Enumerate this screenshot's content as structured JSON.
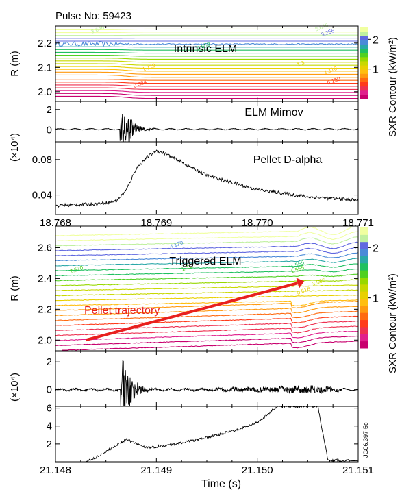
{
  "pulse_label": "Pulse No: 59423",
  "figure_id": "JG06.397-5c",
  "xlabel": "Time (s)",
  "colorbar": {
    "label": "SXR Contour (kW/m²)",
    "ticks": [
      1,
      2
    ],
    "range": [
      0,
      2.4
    ],
    "colors": [
      "#c8006e",
      "#e0208c",
      "#ee3050",
      "#ff3a1a",
      "#ff6a10",
      "#ff9a10",
      "#ffbe10",
      "#e8d000",
      "#c8d800",
      "#98d800",
      "#50d020",
      "#20c060",
      "#2aa8a8",
      "#4a8ad8",
      "#6068e0",
      "#c0f0a0",
      "#f0ffa0"
    ]
  },
  "chart_data": [
    {
      "type": "heatmap",
      "name": "SXR contour (intrinsic ELM)",
      "annotation": "Intrinsic ELM",
      "ylabel": "R (m)",
      "yticks": [
        2.0,
        2.1,
        2.2
      ],
      "ylim": [
        1.96,
        2.27
      ],
      "xlim": [
        18.768,
        18.771
      ],
      "contour_labels": [
        "3.646",
        "3.646",
        "3.256",
        "2.559",
        "1.110",
        "1.110",
        "0.384",
        "0.150",
        "1.3"
      ],
      "event_time": 18.7687
    },
    {
      "type": "line",
      "title": "ELM Mirnov",
      "ylabel": "",
      "yticks": [
        0,
        2
      ],
      "ylim": [
        -1.2,
        2.8
      ],
      "xlim": [
        18.768,
        18.771
      ],
      "burst_time": 18.7687,
      "baseline": 0.05
    },
    {
      "type": "line",
      "title": "Pellet D-alpha",
      "ylabel": "(×10⁴)",
      "yticks": [
        0.04,
        0.08
      ],
      "ylim": [
        0.018,
        0.1
      ],
      "xlim": [
        18.768,
        18.771
      ],
      "xticks": [
        "18.768",
        "18.769",
        "18.770",
        "18.771"
      ],
      "x": [
        18.768,
        18.7684,
        18.7686,
        18.7687,
        18.7688,
        18.7689,
        18.769,
        18.7691,
        18.7695,
        18.77,
        18.7705,
        18.771
      ],
      "y": [
        0.028,
        0.03,
        0.033,
        0.045,
        0.07,
        0.082,
        0.09,
        0.086,
        0.062,
        0.046,
        0.038,
        0.034
      ]
    },
    {
      "type": "heatmap",
      "name": "SXR contour (triggered ELM)",
      "annotation": "Triggered ELM",
      "arrow_label": "Pellet trajectory",
      "ylabel": "R (m)",
      "yticks": [
        2.0,
        2.2,
        2.4,
        2.6
      ],
      "ylim": [
        1.93,
        2.74
      ],
      "xlim": [
        21.148,
        21.151
      ],
      "contour_labels": [
        "4.120",
        "2.570",
        "2.115",
        "1.565",
        "1.565",
        "0.618",
        "3.596"
      ],
      "pellet_trajectory": {
        "x": [
          21.1483,
          21.1504
        ],
        "y": [
          2.0,
          2.37
        ]
      }
    },
    {
      "type": "line",
      "title": "",
      "ylabel": "",
      "yticks": [
        0,
        2
      ],
      "ylim": [
        -1.2,
        2.8
      ],
      "xlim": [
        21.148,
        21.151
      ],
      "burst_time": 21.1487,
      "baseline": 0.0
    },
    {
      "type": "line",
      "title": "",
      "ylabel": "(×10⁴)",
      "yticks": [
        2,
        4,
        6
      ],
      "ylim": [
        0,
        6.2
      ],
      "xlim": [
        21.148,
        21.151
      ],
      "xticks": [
        "21.148",
        "21.149",
        "21.150",
        "21.151"
      ],
      "x": [
        21.148,
        21.1483,
        21.1484,
        21.1486,
        21.1487,
        21.1489,
        21.149,
        21.1492,
        21.1495,
        21.1498,
        21.15,
        21.1502,
        21.1505,
        21.1506,
        21.1507,
        21.151
      ],
      "y": [
        0,
        0,
        0.5,
        1.8,
        2.5,
        1.6,
        1.7,
        2.0,
        2.7,
        3.6,
        4.4,
        6.2,
        6.2,
        6.2,
        0.2,
        0.1
      ]
    }
  ]
}
